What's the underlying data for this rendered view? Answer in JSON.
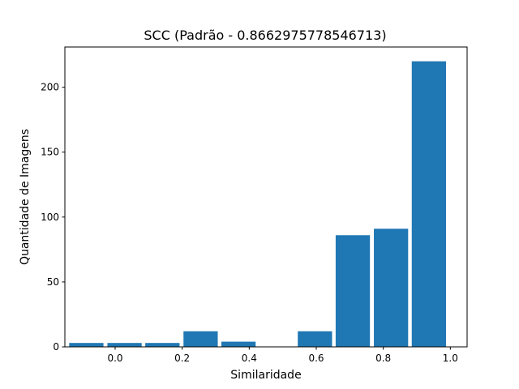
{
  "chart_data": {
    "type": "bar",
    "title": "SCC (Padrão - 0.8662975778546713)",
    "xlabel": "Similaridade",
    "ylabel": "Quantidade de Imagens",
    "bar_color": "#1f77b4",
    "xlim": [
      -0.15,
      1.05
    ],
    "ylim": [
      0,
      231
    ],
    "xticks": [
      0.0,
      0.2,
      0.4,
      0.6,
      0.8,
      1.0
    ],
    "xtick_labels": [
      "0.0",
      "0.2",
      "0.4",
      "0.6",
      "0.8",
      "1.0"
    ],
    "yticks": [
      0,
      50,
      100,
      150,
      200
    ],
    "ytick_labels": [
      "0",
      "50",
      "100",
      "150",
      "200"
    ],
    "bin_width": 0.1136,
    "bars": [
      {
        "x": -0.086,
        "value": 3
      },
      {
        "x": 0.028,
        "value": 3
      },
      {
        "x": 0.141,
        "value": 3
      },
      {
        "x": 0.255,
        "value": 12
      },
      {
        "x": 0.368,
        "value": 4
      },
      {
        "x": 0.482,
        "value": 0
      },
      {
        "x": 0.596,
        "value": 12
      },
      {
        "x": 0.709,
        "value": 86
      },
      {
        "x": 0.823,
        "value": 91
      },
      {
        "x": 0.936,
        "value": 220
      }
    ]
  }
}
